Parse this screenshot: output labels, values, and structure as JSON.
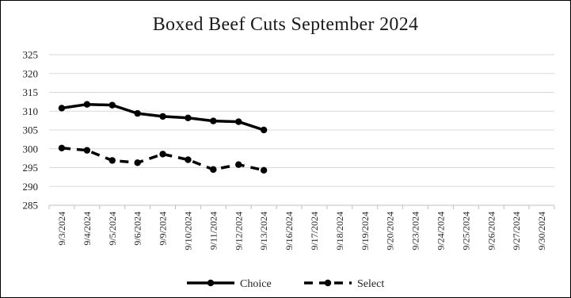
{
  "chart_data": {
    "type": "line",
    "title": "Boxed Beef Cuts September 2024",
    "xlabel": "",
    "ylabel": "",
    "ylim": [
      285,
      325
    ],
    "yticks": [
      285,
      290,
      295,
      300,
      305,
      310,
      315,
      320,
      325
    ],
    "categories": [
      "9/3/2024",
      "9/4/2024",
      "9/5/2024",
      "9/6/2024",
      "9/9/2024",
      "9/10/2024",
      "9/11/2024",
      "9/12/2024",
      "9/13/2024",
      "9/16/2024",
      "9/17/2024",
      "9/18/2024",
      "9/19/2024",
      "9/20/2024",
      "9/23/2024",
      "9/24/2024",
      "9/25/2024",
      "9/26/2024",
      "9/27/2024",
      "9/30/2024"
    ],
    "grid": true,
    "legend_position": "bottom",
    "series": [
      {
        "name": "Choice",
        "style": "solid",
        "color": "#000000",
        "values": [
          310.8,
          311.8,
          311.6,
          309.4,
          308.6,
          308.2,
          307.4,
          307.2,
          305.0,
          null,
          null,
          null,
          null,
          null,
          null,
          null,
          null,
          null,
          null,
          null
        ]
      },
      {
        "name": "Select",
        "style": "dashed",
        "color": "#000000",
        "values": [
          300.2,
          299.6,
          296.9,
          296.3,
          298.6,
          297.1,
          294.5,
          295.8,
          294.3,
          null,
          null,
          null,
          null,
          null,
          null,
          null,
          null,
          null,
          null,
          null
        ]
      }
    ]
  }
}
